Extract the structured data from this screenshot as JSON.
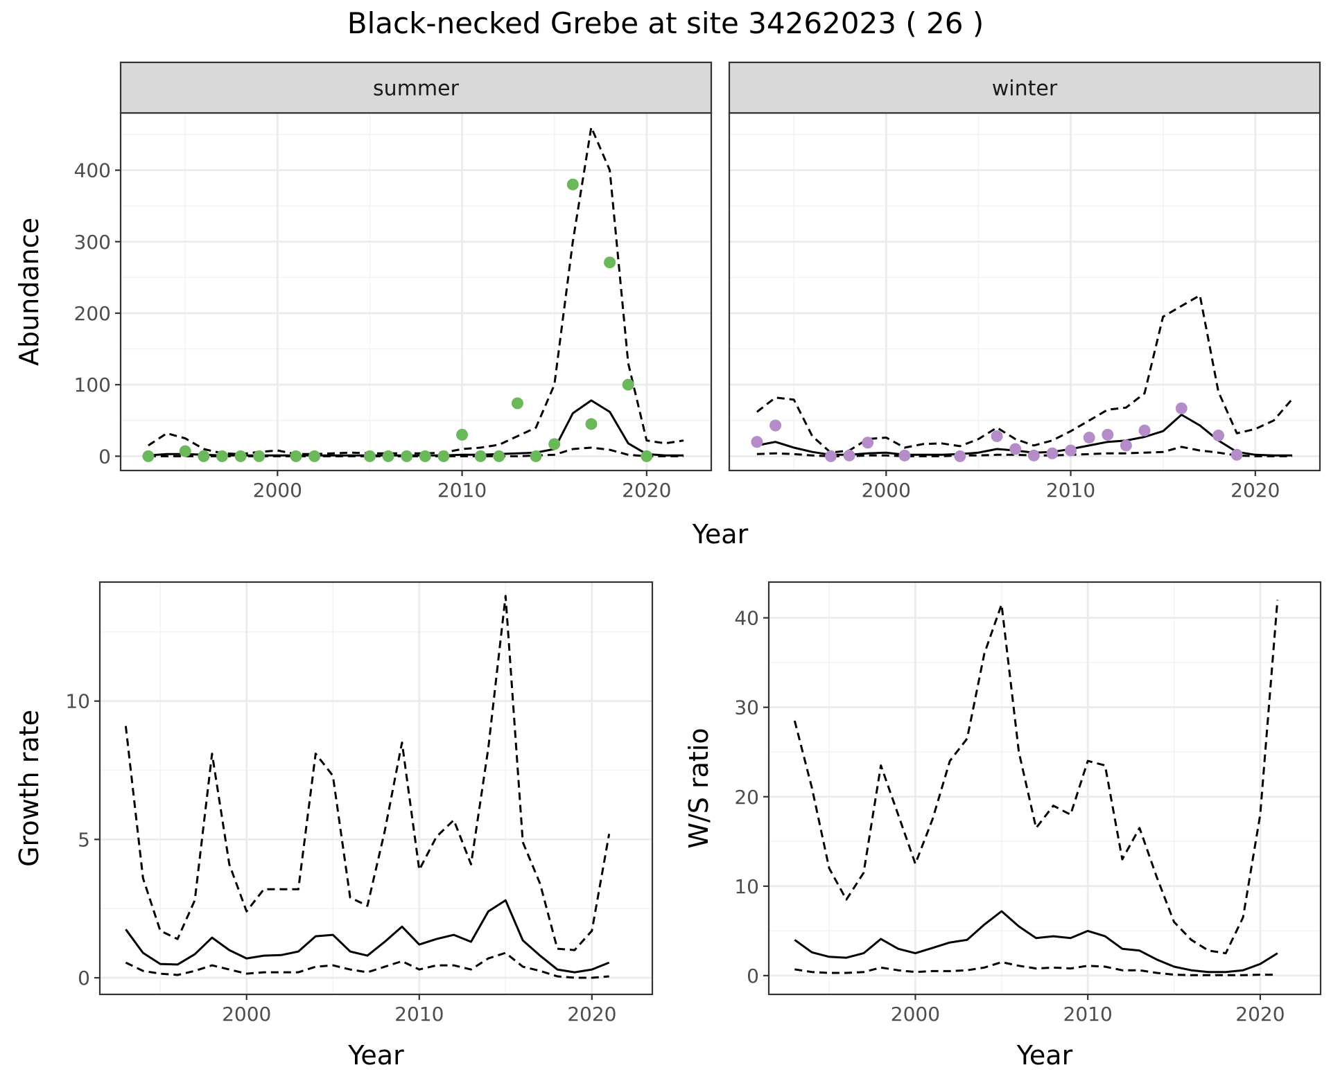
{
  "figure": {
    "title": "Black-necked Grebe at site 34262023 ( 26 )"
  },
  "colors": {
    "summer_points": "#6ab85a",
    "winter_points": "#b48cc8",
    "line": "#000000"
  },
  "chart_data": [
    {
      "id": "abundance-summer",
      "type": "line",
      "strip": "summer",
      "xlabel": "",
      "ylabel": "Abundance",
      "xlim": [
        1991.5,
        2023.5
      ],
      "ylim": [
        -20,
        480
      ],
      "x_ticks": [
        2000,
        2010,
        2020
      ],
      "y_ticks": [
        0,
        100,
        200,
        300,
        400
      ],
      "lines": [
        {
          "style": "solid",
          "x": [
            1993,
            1994,
            1995,
            1996,
            1997,
            1998,
            1999,
            2000,
            2001,
            2002,
            2003,
            2004,
            2005,
            2006,
            2007,
            2008,
            2009,
            2010,
            2011,
            2012,
            2013,
            2014,
            2015,
            2016,
            2017,
            2018,
            2019,
            2020,
            2021,
            2022
          ],
          "y": [
            1,
            3,
            3,
            2,
            1,
            1,
            1,
            1,
            1,
            1,
            1,
            1,
            1,
            1,
            1,
            1,
            1,
            2,
            2,
            3,
            4,
            5,
            10,
            60,
            78,
            62,
            18,
            3,
            1,
            1
          ]
        },
        {
          "style": "dashed",
          "x": [
            1993,
            1994,
            1995,
            1996,
            1997,
            1998,
            1999,
            2000,
            2001,
            2002,
            2003,
            2004,
            2005,
            2006,
            2007,
            2008,
            2009,
            2010,
            2011,
            2012,
            2013,
            2014,
            2015,
            2016,
            2017,
            2018,
            2019,
            2020,
            2021,
            2022
          ],
          "y": [
            15,
            32,
            25,
            10,
            4,
            3,
            6,
            8,
            3,
            3,
            4,
            5,
            4,
            4,
            4,
            4,
            5,
            10,
            12,
            16,
            28,
            40,
            100,
            300,
            460,
            400,
            130,
            22,
            18,
            22
          ]
        },
        {
          "style": "dashed",
          "x": [
            1993,
            1994,
            1995,
            1996,
            1997,
            1998,
            1999,
            2000,
            2001,
            2002,
            2003,
            2004,
            2005,
            2006,
            2007,
            2008,
            2009,
            2010,
            2011,
            2012,
            2013,
            2014,
            2015,
            2016,
            2017,
            2018,
            2019,
            2020,
            2021,
            2022
          ],
          "y": [
            0,
            0,
            0,
            0,
            0,
            0,
            0,
            0,
            0,
            0,
            0,
            0,
            0,
            0,
            0,
            0,
            0,
            0,
            0,
            0,
            0,
            1,
            2,
            10,
            12,
            9,
            2,
            0,
            0,
            0
          ]
        }
      ],
      "points": {
        "x": [
          1993,
          1995,
          1996,
          1997,
          1998,
          1999,
          2001,
          2002,
          2005,
          2006,
          2007,
          2008,
          2009,
          2010,
          2011,
          2012,
          2013,
          2014,
          2015,
          2016,
          2017,
          2018,
          2019,
          2020
        ],
        "y": [
          0,
          7,
          0,
          0,
          0,
          0,
          0,
          0,
          0,
          0,
          0,
          0,
          0,
          30,
          0,
          0,
          74,
          0,
          17,
          380,
          45,
          271,
          100,
          0
        ]
      }
    },
    {
      "id": "abundance-winter",
      "type": "line",
      "strip": "winter",
      "xlabel": "",
      "ylabel": "",
      "xlim": [
        1991.5,
        2023.5
      ],
      "ylim": [
        -20,
        480
      ],
      "x_ticks": [
        2000,
        2010,
        2020
      ],
      "y_ticks": [
        0,
        100,
        200,
        300,
        400
      ],
      "lines": [
        {
          "style": "solid",
          "x": [
            1993,
            1994,
            1995,
            1996,
            1997,
            1998,
            1999,
            2000,
            2001,
            2002,
            2003,
            2004,
            2005,
            2006,
            2007,
            2008,
            2009,
            2010,
            2011,
            2012,
            2013,
            2014,
            2015,
            2016,
            2017,
            2018,
            2019,
            2020,
            2021,
            2022
          ],
          "y": [
            15,
            20,
            12,
            6,
            2,
            2,
            4,
            5,
            2,
            2,
            2,
            3,
            5,
            10,
            8,
            5,
            6,
            10,
            15,
            20,
            22,
            27,
            35,
            58,
            43,
            22,
            6,
            2,
            1,
            1
          ]
        },
        {
          "style": "dashed",
          "x": [
            1993,
            1994,
            1995,
            1996,
            1997,
            1998,
            1999,
            2000,
            2001,
            2002,
            2003,
            2004,
            2005,
            2006,
            2007,
            2008,
            2009,
            2010,
            2011,
            2012,
            2013,
            2014,
            2015,
            2016,
            2017,
            2018,
            2019,
            2020,
            2021,
            2022
          ],
          "y": [
            62,
            82,
            79,
            28,
            5,
            8,
            24,
            26,
            12,
            17,
            18,
            14,
            24,
            40,
            24,
            15,
            22,
            35,
            50,
            65,
            68,
            88,
            195,
            210,
            225,
            90,
            32,
            38,
            50,
            80
          ]
        },
        {
          "style": "dashed",
          "x": [
            1993,
            1994,
            1995,
            1996,
            1997,
            1998,
            1999,
            2000,
            2001,
            2002,
            2003,
            2004,
            2005,
            2006,
            2007,
            2008,
            2009,
            2010,
            2011,
            2012,
            2013,
            2014,
            2015,
            2016,
            2017,
            2018,
            2019,
            2020,
            2021,
            2022
          ],
          "y": [
            3,
            4,
            3,
            1,
            0,
            0,
            1,
            1,
            0,
            0,
            0,
            1,
            1,
            2,
            2,
            1,
            1,
            2,
            3,
            4,
            4,
            5,
            6,
            13,
            8,
            5,
            1,
            0,
            0,
            0
          ]
        }
      ],
      "points": {
        "x": [
          1993,
          1994,
          1997,
          1998,
          1999,
          2001,
          2004,
          2006,
          2007,
          2008,
          2009,
          2010,
          2011,
          2012,
          2013,
          2014,
          2016,
          2018,
          2019
        ],
        "y": [
          20,
          43,
          0,
          1,
          19,
          1,
          0,
          28,
          10,
          1,
          4,
          8,
          26,
          30,
          15,
          36,
          67,
          29,
          2
        ]
      }
    },
    {
      "id": "growth-rate",
      "type": "line",
      "xlabel": "Year",
      "ylabel": "Growth rate",
      "xlim": [
        1991.5,
        2023.5
      ],
      "ylim": [
        -0.6,
        14.3
      ],
      "x_ticks": [
        2000,
        2010,
        2020
      ],
      "y_ticks": [
        0,
        5,
        10
      ],
      "lines": [
        {
          "style": "solid",
          "x": [
            1993,
            1994,
            1995,
            1996,
            1997,
            1998,
            1999,
            2000,
            2001,
            2002,
            2003,
            2004,
            2005,
            2006,
            2007,
            2008,
            2009,
            2010,
            2011,
            2012,
            2013,
            2014,
            2015,
            2016,
            2017,
            2018,
            2019,
            2020,
            2021
          ],
          "y": [
            1.75,
            0.9,
            0.5,
            0.48,
            0.85,
            1.45,
            1.0,
            0.7,
            0.8,
            0.82,
            0.95,
            1.5,
            1.55,
            0.95,
            0.8,
            1.3,
            1.85,
            1.2,
            1.4,
            1.55,
            1.3,
            2.4,
            2.8,
            1.35,
            0.8,
            0.3,
            0.2,
            0.3,
            0.55
          ]
        },
        {
          "style": "dashed",
          "x": [
            1993,
            1994,
            1995,
            1996,
            1997,
            1998,
            1999,
            2000,
            2001,
            2002,
            2003,
            2004,
            2005,
            2006,
            2007,
            2008,
            2009,
            2010,
            2011,
            2012,
            2013,
            2014,
            2015,
            2016,
            2017,
            2018,
            2019,
            2020,
            2021
          ],
          "y": [
            9.1,
            3.6,
            1.7,
            1.4,
            2.8,
            8.1,
            4.1,
            2.4,
            3.2,
            3.2,
            3.2,
            8.1,
            7.3,
            2.9,
            2.6,
            5.3,
            8.5,
            3.9,
            5.1,
            5.7,
            4.1,
            8.3,
            13.8,
            4.9,
            3.4,
            1.05,
            1.0,
            1.7,
            5.2
          ]
        },
        {
          "style": "dashed",
          "x": [
            1993,
            1994,
            1995,
            1996,
            1997,
            1998,
            1999,
            2000,
            2001,
            2002,
            2003,
            2004,
            2005,
            2006,
            2007,
            2008,
            2009,
            2010,
            2011,
            2012,
            2013,
            2014,
            2015,
            2016,
            2017,
            2018,
            2019,
            2020,
            2021
          ],
          "y": [
            0.55,
            0.25,
            0.15,
            0.1,
            0.25,
            0.45,
            0.3,
            0.15,
            0.2,
            0.2,
            0.2,
            0.4,
            0.45,
            0.3,
            0.2,
            0.4,
            0.6,
            0.3,
            0.45,
            0.45,
            0.3,
            0.7,
            0.9,
            0.4,
            0.25,
            0.05,
            0.0,
            0.0,
            0.05
          ]
        }
      ]
    },
    {
      "id": "ws-ratio",
      "type": "line",
      "xlabel": "Year",
      "ylabel": "W/S ratio",
      "xlim": [
        1991.5,
        2023.5
      ],
      "ylim": [
        -2.1,
        44.0
      ],
      "x_ticks": [
        2000,
        2010,
        2020
      ],
      "y_ticks": [
        0,
        10,
        20,
        30,
        40
      ],
      "lines": [
        {
          "style": "solid",
          "x": [
            1993,
            1994,
            1995,
            1996,
            1997,
            1998,
            1999,
            2000,
            2001,
            2002,
            2003,
            2004,
            2005,
            2006,
            2007,
            2008,
            2009,
            2010,
            2011,
            2012,
            2013,
            2014,
            2015,
            2016,
            2017,
            2018,
            2019,
            2020,
            2021
          ],
          "y": [
            4.0,
            2.6,
            2.1,
            2.0,
            2.5,
            4.1,
            3.0,
            2.5,
            3.1,
            3.7,
            4.0,
            5.7,
            7.2,
            5.5,
            4.2,
            4.4,
            4.2,
            5.0,
            4.4,
            3.0,
            2.8,
            1.8,
            1.0,
            0.6,
            0.4,
            0.4,
            0.6,
            1.3,
            2.5
          ]
        },
        {
          "style": "dashed",
          "x": [
            1993,
            1994,
            1995,
            1996,
            1997,
            1998,
            1999,
            2000,
            2001,
            2002,
            2003,
            2004,
            2005,
            2006,
            2007,
            2008,
            2009,
            2010,
            2011,
            2012,
            2013,
            2014,
            2015,
            2016,
            2017,
            2018,
            2019,
            2020,
            2021
          ],
          "y": [
            28.5,
            21.0,
            12.0,
            8.5,
            11.5,
            23.5,
            18.0,
            12.5,
            17.5,
            24.0,
            26.5,
            36.0,
            41.5,
            25.0,
            16.5,
            19.0,
            18.0,
            24.0,
            23.5,
            13.0,
            16.5,
            11.0,
            6.0,
            4.0,
            2.8,
            2.5,
            6.5,
            18.0,
            42.0
          ]
        },
        {
          "style": "dashed",
          "x": [
            1993,
            1994,
            1995,
            1996,
            1997,
            1998,
            1999,
            2000,
            2001,
            2002,
            2003,
            2004,
            2005,
            2006,
            2007,
            2008,
            2009,
            2010,
            2011,
            2012,
            2013,
            2014,
            2015,
            2016,
            2017,
            2018,
            2019,
            2020,
            2021
          ],
          "y": [
            0.7,
            0.4,
            0.3,
            0.3,
            0.4,
            0.9,
            0.6,
            0.4,
            0.5,
            0.5,
            0.6,
            0.9,
            1.5,
            1.1,
            0.8,
            0.9,
            0.8,
            1.1,
            1.0,
            0.6,
            0.6,
            0.3,
            0.1,
            0.05,
            0.05,
            0.05,
            0.05,
            0.1,
            0.1
          ]
        }
      ]
    }
  ]
}
